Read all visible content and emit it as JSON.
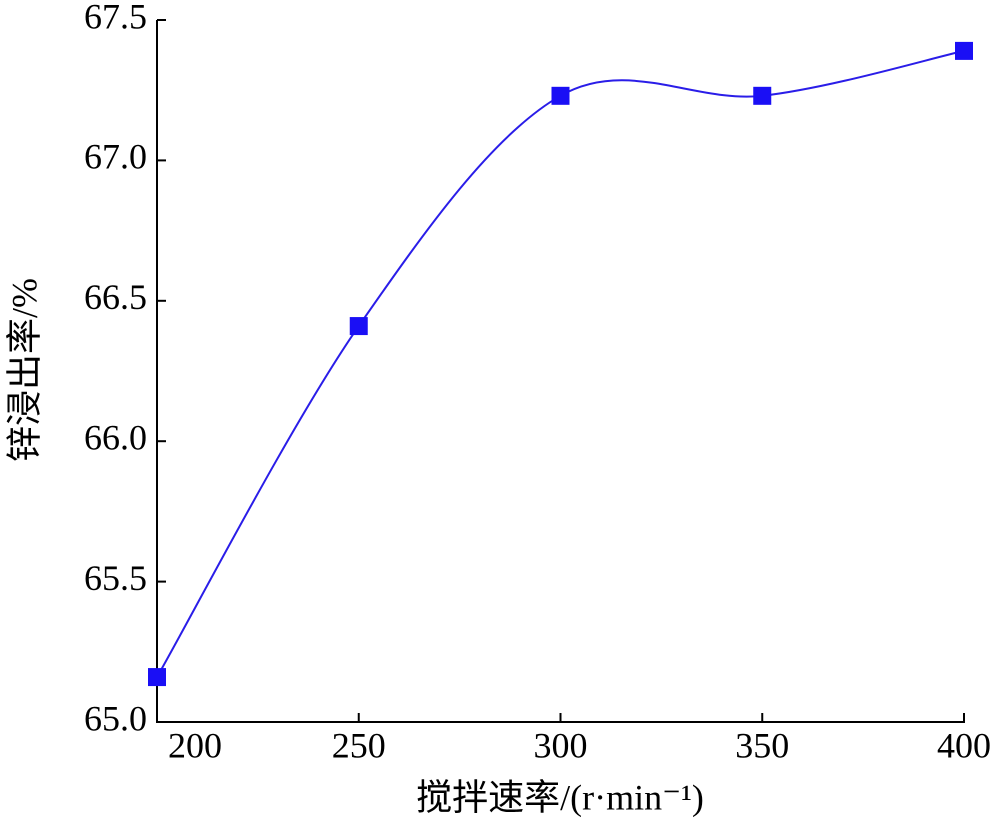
{
  "chart_data": {
    "type": "line",
    "x_label": "搅拌速率/(r·min⁻¹)",
    "y_label": "锌浸出率/%",
    "x": [
      200,
      250,
      300,
      350,
      400
    ],
    "series": [
      {
        "name": "锌浸出率",
        "color": "#2a1de8",
        "marker_color": "#1a0ff5",
        "values": [
          65.16,
          66.41,
          67.23,
          67.23,
          67.39
        ]
      }
    ],
    "xlim": [
      200,
      400
    ],
    "xticks": [
      200,
      250,
      300,
      350,
      400
    ],
    "ylim": [
      65,
      67.5
    ],
    "yticks": [
      {
        "value": 65,
        "label": "65.0"
      },
      65.5,
      {
        "value": 66,
        "label": "66.0"
      },
      66.5,
      {
        "value": 67,
        "label": "67.0"
      },
      67.5
    ],
    "smooth": true,
    "marker": "square"
  }
}
